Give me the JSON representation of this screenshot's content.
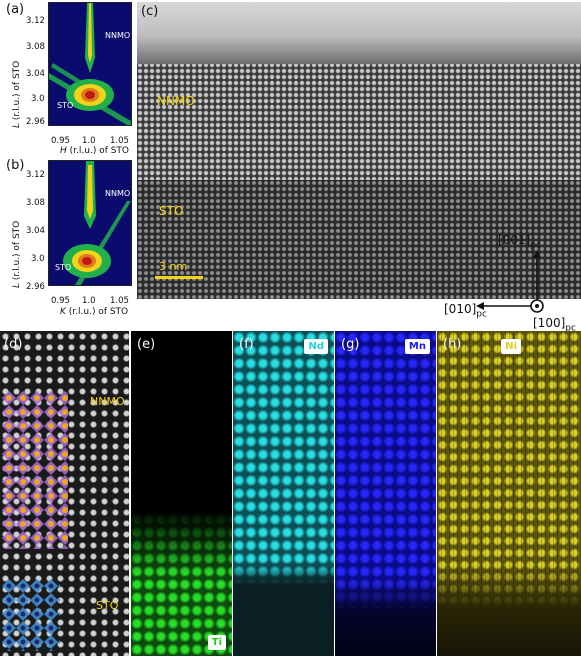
{
  "panels": {
    "a": {
      "label": "(a)",
      "yticks": [
        "3.12",
        "3.08",
        "3.04",
        "3.0",
        "2.96"
      ],
      "xticks": [
        "0.95",
        "1.0",
        "1.05"
      ],
      "xaxis_var": "H",
      "xaxis_rest": " (r.l.u.) of STO",
      "yaxis_var": "L",
      "yaxis_rest": " (r.l.u.) of STO",
      "film": "NNMO",
      "substrate": "STO"
    },
    "b": {
      "label": "(b)",
      "yticks": [
        "3.12",
        "3.08",
        "3.04",
        "3.0",
        "2.96"
      ],
      "xticks": [
        "0.95",
        "1.0",
        "1.05"
      ],
      "xaxis_var": "K",
      "xaxis_rest": " (r.l.u.) of STO",
      "yaxis_var": "L",
      "yaxis_rest": " (r.l.u.) of STO",
      "film": "NNMO",
      "substrate": "STO"
    },
    "c": {
      "label": "(c)",
      "film": "NNMO",
      "substrate": "STO",
      "scalebar": "3 nm"
    },
    "d": {
      "label": "(d)",
      "film": "NNMO",
      "substrate": "STO"
    },
    "e": {
      "label": "(e)",
      "element": "Ti"
    },
    "f": {
      "label": "(f)",
      "element": "Nd"
    },
    "g": {
      "label": "(g)",
      "element": "Mn"
    },
    "h": {
      "label": "(h)",
      "element": "Ni"
    }
  },
  "axes": {
    "up": "[001]",
    "left": "[010]",
    "out": "[100]",
    "sub": "pc"
  },
  "colors": {
    "map_background": "#0b0b6e",
    "label_yellow": "#f2d21b",
    "ti": "#1fd11f",
    "nd": "#1fd0d6",
    "mn": "#1a1aff",
    "ni": "#d8d21a"
  }
}
